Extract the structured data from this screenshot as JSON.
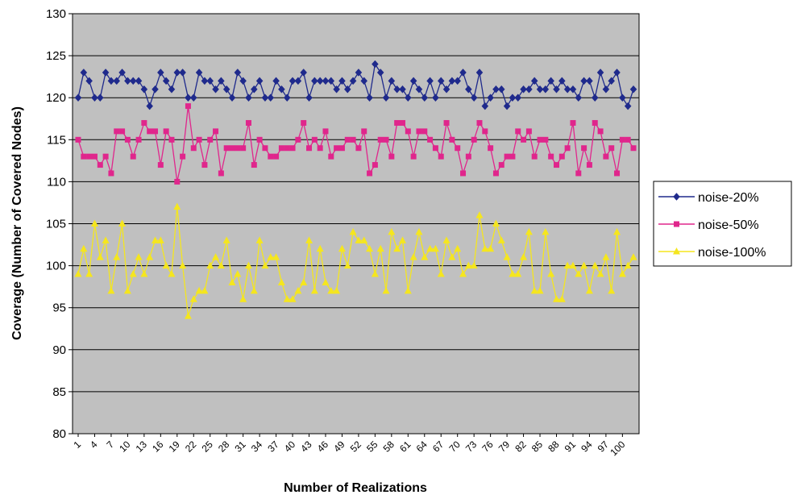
{
  "chart_data": {
    "type": "line",
    "title": "",
    "xlabel": "Number of Realizations",
    "ylabel": "Coverage (Number of Covered Nodes)",
    "ylim": [
      80,
      130
    ],
    "yticks": [
      80,
      85,
      90,
      95,
      100,
      105,
      110,
      115,
      120,
      125,
      130
    ],
    "xlim": [
      1,
      102
    ],
    "xtick_labels": [
      "1",
      "4",
      "7",
      "10",
      "13",
      "16",
      "19",
      "22",
      "25",
      "28",
      "31",
      "34",
      "37",
      "40",
      "43",
      "46",
      "49",
      "52",
      "55",
      "58",
      "61",
      "64",
      "67",
      "70",
      "73",
      "76",
      "79",
      "82",
      "85",
      "88",
      "91",
      "94",
      "97",
      "100"
    ],
    "grid": "horizontal",
    "plot_background": "#c0c0c0",
    "legend_position": "right",
    "series": [
      {
        "name": "noise-20%",
        "color": "#1f2a8c",
        "marker": "diamond",
        "values": [
          120,
          123,
          122,
          120,
          120,
          123,
          122,
          122,
          123,
          122,
          122,
          122,
          121,
          119,
          121,
          123,
          122,
          121,
          123,
          123,
          120,
          120,
          123,
          122,
          122,
          121,
          122,
          121,
          120,
          123,
          122,
          120,
          121,
          122,
          120,
          120,
          122,
          121,
          120,
          122,
          122,
          123,
          120,
          122,
          122,
          122,
          122,
          121,
          122,
          121,
          122,
          123,
          122,
          120,
          124,
          123,
          120,
          122,
          121,
          121,
          120,
          122,
          121,
          120,
          122,
          120,
          122,
          121,
          122,
          122,
          123,
          121,
          120,
          123,
          119,
          120,
          121,
          121,
          119,
          120,
          120,
          121,
          121,
          122,
          121,
          121,
          122,
          121,
          122,
          121,
          121,
          120,
          122,
          122,
          120,
          123,
          121,
          122,
          123,
          120,
          119,
          121
        ]
      },
      {
        "name": "noise-50%",
        "color": "#e0268c",
        "marker": "square",
        "values": [
          115,
          113,
          113,
          113,
          112,
          113,
          111,
          116,
          116,
          115,
          113,
          115,
          117,
          116,
          116,
          112,
          116,
          115,
          110,
          113,
          119,
          114,
          115,
          112,
          115,
          116,
          111,
          114,
          114,
          114,
          114,
          117,
          112,
          115,
          114,
          113,
          113,
          114,
          114,
          114,
          115,
          117,
          114,
          115,
          114,
          116,
          113,
          114,
          114,
          115,
          115,
          114,
          116,
          111,
          112,
          115,
          115,
          113,
          117,
          117,
          116,
          113,
          116,
          116,
          115,
          114,
          113,
          117,
          115,
          114,
          111,
          113,
          115,
          117,
          116,
          114,
          111,
          112,
          113,
          113,
          116,
          115,
          116,
          113,
          115,
          115,
          113,
          112,
          113,
          114,
          117,
          111,
          114,
          112,
          117,
          116,
          113,
          114,
          111,
          115,
          115,
          114
        ]
      },
      {
        "name": "noise-100%",
        "color": "#f5e61e",
        "marker": "triangle",
        "values": [
          99,
          102,
          99,
          105,
          101,
          103,
          97,
          101,
          105,
          97,
          99,
          101,
          99,
          101,
          103,
          103,
          100,
          99,
          107,
          100,
          94,
          96,
          97,
          97,
          100,
          101,
          100,
          103,
          98,
          99,
          96,
          100,
          97,
          103,
          100,
          101,
          101,
          98,
          96,
          96,
          97,
          98,
          103,
          97,
          102,
          98,
          97,
          97,
          102,
          100,
          104,
          103,
          103,
          102,
          99,
          102,
          97,
          104,
          102,
          103,
          97,
          101,
          104,
          101,
          102,
          102,
          99,
          103,
          101,
          102,
          99,
          100,
          100,
          106,
          102,
          102,
          105,
          103,
          101,
          99,
          99,
          101,
          104,
          97,
          97,
          104,
          99,
          96,
          96,
          100,
          100,
          99,
          100,
          97,
          100,
          99,
          101,
          97,
          104,
          99,
          100,
          101
        ]
      }
    ]
  }
}
